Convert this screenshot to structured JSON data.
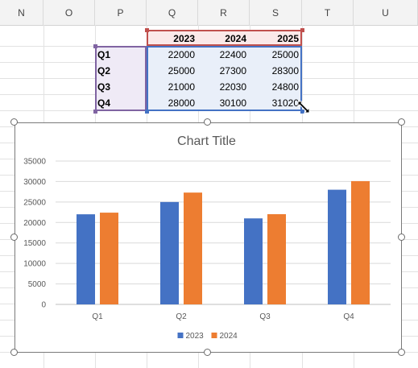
{
  "columns": [
    "N",
    "O",
    "P",
    "Q",
    "R",
    "S",
    "T",
    "U"
  ],
  "table": {
    "headers": [
      "2023",
      "2024",
      "2025"
    ],
    "rows": [
      {
        "label": "Q1",
        "values": [
          "22000",
          "22400",
          "25000"
        ]
      },
      {
        "label": "Q2",
        "values": [
          "25000",
          "27300",
          "28300"
        ]
      },
      {
        "label": "Q3",
        "values": [
          "21000",
          "22030",
          "24800"
        ]
      },
      {
        "label": "Q4",
        "values": [
          "28000",
          "30100",
          "31020"
        ]
      }
    ]
  },
  "range_colors": {
    "headers": "#c0504d",
    "labels": "#8064a2",
    "values": "#4472c4"
  },
  "chart_data": {
    "type": "bar",
    "title": "Chart Title",
    "categories": [
      "Q1",
      "Q2",
      "Q3",
      "Q4"
    ],
    "series": [
      {
        "name": "2023",
        "color": "#4472c4",
        "values": [
          22000,
          25000,
          21000,
          28000
        ]
      },
      {
        "name": "2024",
        "color": "#ed7d31",
        "values": [
          22400,
          27300,
          22030,
          30100
        ]
      }
    ],
    "ylim": [
      0,
      35000
    ],
    "yticks": [
      "0",
      "5000",
      "10000",
      "15000",
      "20000",
      "25000",
      "30000",
      "35000"
    ],
    "grid": true,
    "legend": "bottom"
  }
}
